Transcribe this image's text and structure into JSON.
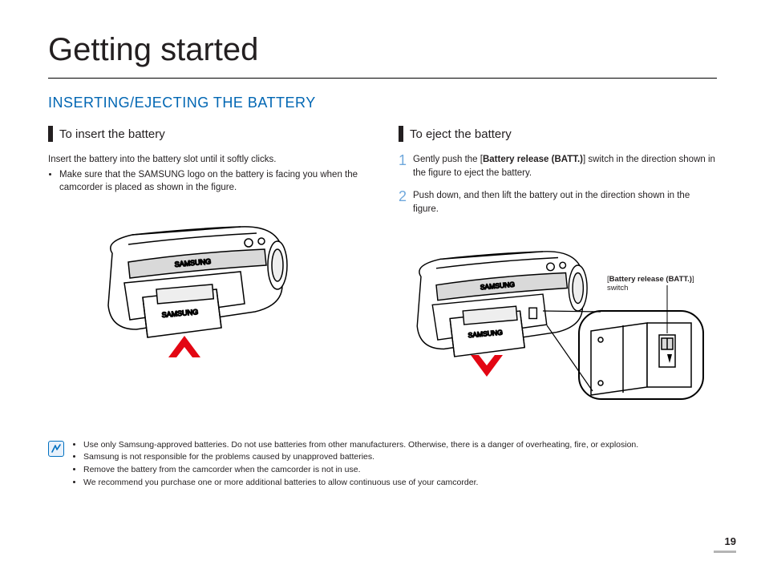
{
  "page": {
    "title": "Getting started",
    "number": "19"
  },
  "section": {
    "heading": "INSERTING/EJECTING THE BATTERY"
  },
  "left": {
    "sub_heading": "To insert the battery",
    "intro": "Insert the battery into the battery slot until it softly clicks.",
    "bullet": "Make sure that the SAMSUNG logo on the battery is facing you when the camcorder is placed as shown in the figure."
  },
  "right": {
    "sub_heading": "To eject the battery",
    "steps": [
      {
        "num": "1",
        "pre": "Gently push the [",
        "bold": "Battery release (BATT.)",
        "post": "] switch in the direction shown in the figure to eject the battery."
      },
      {
        "num": "2",
        "pre": "Push down, and then lift the battery out in the direction shown in the figure.",
        "bold": "",
        "post": ""
      }
    ],
    "callout_pre": "[",
    "callout_bold": "Battery release (BATT.)",
    "callout_post": "] switch"
  },
  "notes": [
    "Use only Samsung-approved batteries. Do not use batteries from other manufacturers. Otherwise, there is a danger of overheating, fire, or explosion.",
    "Samsung is not responsible for the problems caused by unapproved batteries.",
    "Remove the battery from the camcorder when the camcorder is not in use.",
    "We recommend you purchase one or more additional batteries to allow continuous use of your camcorder."
  ],
  "figure": {
    "stroke": "#000000",
    "arrow_fill": "#e30613",
    "arrow_stroke": "#e30613",
    "body_fill": "#ffffff",
    "shade_fill": "#d9d9d9",
    "zoom_stroke": "#000000",
    "leader_stroke": "#000000"
  }
}
